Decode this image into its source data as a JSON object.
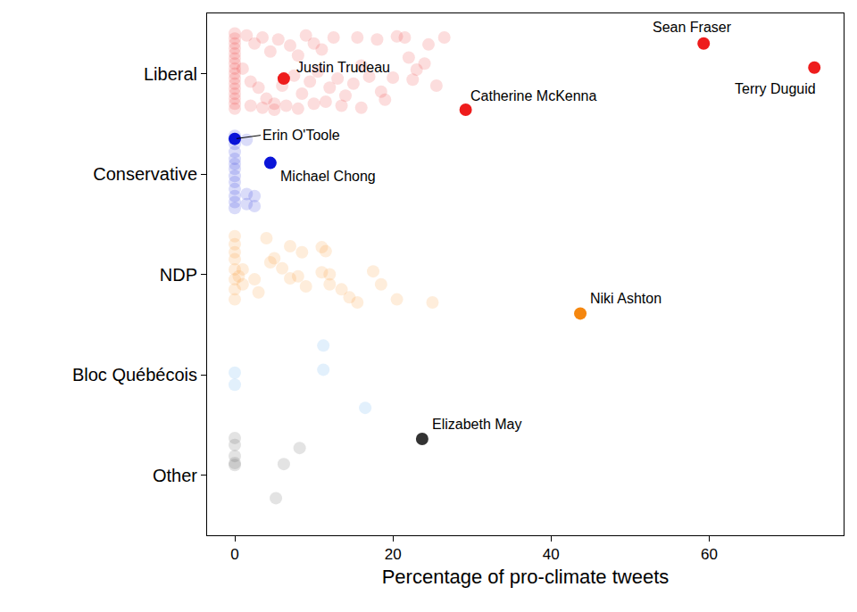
{
  "chart_data": {
    "type": "scatter",
    "x_label": "Percentage of pro-climate tweets",
    "xlim": [
      -3.5,
      77
    ],
    "xticks": [
      0,
      20,
      40,
      60
    ],
    "ylim": [
      0.4,
      5.6
    ],
    "yticks": [
      {
        "value": 5,
        "label": "Liberal"
      },
      {
        "value": 4,
        "label": "Conservative"
      },
      {
        "value": 3,
        "label": "NDP"
      },
      {
        "value": 2,
        "label": "Bloc Québécois"
      },
      {
        "value": 1,
        "label": "Other"
      }
    ],
    "grid": false,
    "series": [
      {
        "name": "Liberal",
        "color": "#ee1c1c",
        "x": [
          0,
          0,
          0,
          0,
          0,
          0,
          0,
          0,
          0,
          0,
          0,
          0,
          0,
          0,
          0,
          0,
          1.5,
          2.5,
          3.5,
          4.5,
          5.5,
          7,
          8,
          9,
          10,
          11,
          12.5,
          15.5,
          18,
          20.5,
          21.5,
          22,
          24.5,
          26.5,
          1,
          2,
          3,
          4,
          5,
          6,
          7.5,
          8.5,
          9.5,
          10.5,
          11.5,
          12,
          13,
          14,
          15,
          16,
          17,
          18.5,
          20,
          22.5,
          24,
          25.5,
          2,
          3.5,
          5,
          6.5,
          8,
          10,
          13.5,
          16,
          19,
          23
        ],
        "y": [
          5.4,
          5.35,
          5.3,
          5.25,
          5.2,
          5.15,
          5.1,
          5.05,
          5.0,
          4.95,
          4.9,
          4.85,
          4.8,
          4.75,
          4.7,
          4.65,
          5.38,
          5.3,
          5.36,
          5.22,
          5.34,
          5.28,
          5.18,
          5.38,
          5.3,
          5.24,
          5.36,
          5.36,
          5.34,
          5.37,
          5.36,
          5.16,
          5.29,
          5.36,
          5.05,
          4.92,
          4.86,
          4.75,
          4.7,
          4.88,
          4.98,
          4.8,
          4.92,
          5.02,
          4.72,
          4.86,
          4.95,
          4.78,
          4.9,
          5.08,
          4.97,
          4.82,
          4.96,
          4.94,
          5.1,
          4.88,
          4.68,
          4.66,
          4.64,
          4.68,
          4.65,
          4.7,
          4.68,
          4.66,
          4.74,
          5.04
        ]
      },
      {
        "name": "Conservative",
        "color": "#0a14d8",
        "x": [
          0,
          0,
          0,
          0,
          0,
          0,
          0,
          0,
          0,
          0,
          0,
          0,
          1.5,
          1.5,
          1.5,
          2.5,
          2.5
        ],
        "y": [
          4.38,
          4.3,
          4.22,
          4.15,
          4.1,
          4.05,
          3.98,
          3.92,
          3.85,
          3.78,
          3.72,
          3.66,
          4.34,
          3.8,
          3.7,
          3.78,
          3.68
        ]
      },
      {
        "name": "NDP",
        "color": "#f5870f",
        "x": [
          0,
          0,
          0,
          0,
          0,
          0,
          0,
          0,
          4,
          7,
          8.5,
          5,
          11,
          11.5,
          4.5,
          1,
          0.5,
          2.5,
          6,
          8,
          11,
          12,
          17.5,
          18.5,
          13.5,
          14.5,
          20.5,
          12,
          15.5,
          25,
          1,
          3,
          7,
          9
        ],
        "y": [
          3.38,
          3.3,
          3.22,
          3.15,
          3.05,
          2.95,
          2.85,
          2.75,
          3.36,
          3.28,
          3.22,
          3.16,
          3.27,
          3.23,
          3.12,
          3.05,
          2.98,
          2.95,
          3.06,
          2.98,
          3.02,
          3.0,
          3.03,
          2.9,
          2.85,
          2.77,
          2.75,
          2.9,
          2.72,
          2.72,
          2.9,
          2.82,
          2.96,
          2.88
        ]
      },
      {
        "name": "Bloc Québécois",
        "color": "#3a9be8",
        "x": [
          0,
          0,
          11.2,
          11.2,
          16.5
        ],
        "y": [
          2.02,
          1.9,
          2.29,
          2.05,
          1.67
        ]
      },
      {
        "name": "Other",
        "color": "#444444",
        "x": [
          0,
          0,
          0,
          0,
          0,
          8.2,
          6.2,
          5.2
        ],
        "y": [
          1.37,
          1.3,
          1.19,
          1.12,
          1.1,
          1.27,
          1.11,
          0.77
        ]
      }
    ],
    "highlights": [
      {
        "label": "Sean Fraser",
        "color": "#ee1c1c",
        "x": 59.3,
        "y": 5.3
      },
      {
        "label": "Terry Duguid",
        "color": "#ee1c1c",
        "x": 73.3,
        "y": 5.06
      },
      {
        "label": "Justin Trudeau",
        "color": "#ee1c1c",
        "x": 6.2,
        "y": 4.95
      },
      {
        "label": "Catherine McKenna",
        "color": "#ee1c1c",
        "x": 29.2,
        "y": 4.64
      },
      {
        "label": "Erin O'Toole",
        "color": "#0a14d8",
        "x": 0,
        "y": 4.35
      },
      {
        "label": "Michael Chong",
        "color": "#0a14d8",
        "x": 4.5,
        "y": 4.11
      },
      {
        "label": "Niki Ashton",
        "color": "#f5870f",
        "x": 43.7,
        "y": 2.61
      },
      {
        "label": "Elizabeth May",
        "color": "#333333",
        "x": 23.7,
        "y": 1.36
      }
    ]
  }
}
